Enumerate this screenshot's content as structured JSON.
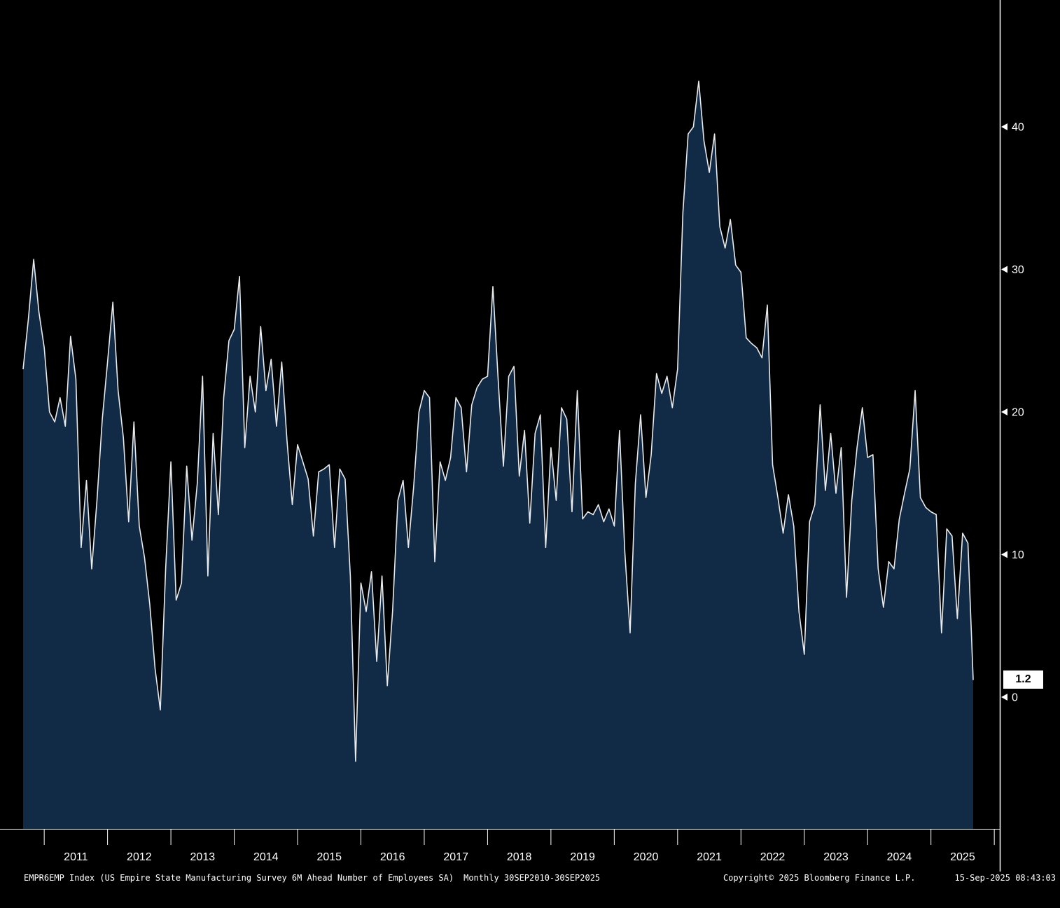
{
  "chart_data": {
    "type": "area",
    "title": "",
    "xlabel": "",
    "ylabel": "",
    "grid": false,
    "legend": "none",
    "ylim": [
      -9.2,
      47.5
    ],
    "yticks": [
      0,
      10,
      20,
      30,
      40
    ],
    "x_year_labels": [
      "2011",
      "2012",
      "2013",
      "2014",
      "2015",
      "2016",
      "2017",
      "2018",
      "2019",
      "2020",
      "2021",
      "2022",
      "2023",
      "2024",
      "2025"
    ],
    "last_value": 1.2,
    "last_value_label": "1.2",
    "series": [
      {
        "name": "EMPR6EMP Index",
        "description": "US Empire State Manufacturing Survey 6M Ahead Number of Employees SA",
        "frequency": "monthly",
        "start": "2010-09",
        "end": "2025-09",
        "values": [
          23.0,
          26.5,
          30.7,
          27.0,
          24.5,
          20.0,
          19.3,
          21.0,
          19.0,
          25.3,
          22.3,
          10.5,
          15.2,
          9.0,
          13.8,
          19.5,
          23.5,
          27.7,
          21.5,
          18.2,
          12.3,
          19.3,
          12.0,
          9.8,
          6.5,
          2.0,
          -0.9,
          9.0,
          16.5,
          6.8,
          8.0,
          16.2,
          11.0,
          15.0,
          22.5,
          8.5,
          18.5,
          12.8,
          21.0,
          25.0,
          25.8,
          29.5,
          17.5,
          22.5,
          20.0,
          26.0,
          21.5,
          23.7,
          19.0,
          23.5,
          18.0,
          13.5,
          17.7,
          16.5,
          15.3,
          11.3,
          15.8,
          16.0,
          16.3,
          10.5,
          16.0,
          15.3,
          8.5,
          -4.5,
          8.0,
          6.0,
          8.8,
          2.5,
          8.5,
          0.8,
          6.0,
          13.8,
          15.2,
          10.5,
          14.8,
          20.0,
          21.5,
          21.0,
          9.5,
          16.5,
          15.2,
          16.8,
          21.0,
          20.3,
          15.8,
          20.5,
          21.7,
          22.3,
          22.5,
          28.8,
          22.3,
          16.2,
          22.5,
          23.2,
          15.5,
          18.7,
          12.2,
          18.5,
          19.8,
          10.5,
          17.5,
          13.8,
          20.3,
          19.5,
          13.0,
          21.5,
          12.5,
          13.0,
          12.8,
          13.5,
          12.3,
          13.2,
          12.0,
          18.7,
          10.2,
          4.5,
          15.0,
          19.8,
          14.0,
          17.0,
          22.7,
          21.3,
          22.5,
          20.3,
          23.0,
          34.0,
          39.5,
          40.0,
          43.2,
          39.0,
          36.8,
          39.5,
          33.0,
          31.5,
          33.5,
          30.3,
          29.8,
          25.2,
          24.8,
          24.5,
          23.8,
          27.5,
          16.3,
          14.0,
          11.5,
          14.2,
          12.0,
          6.0,
          3.0,
          12.3,
          13.5,
          20.5,
          14.5,
          18.5,
          14.3,
          17.5,
          7.0,
          13.8,
          17.5,
          20.3,
          16.8,
          17.0,
          9.0,
          6.3,
          9.5,
          9.0,
          12.5,
          14.3,
          16.0,
          21.5,
          14.0,
          13.3,
          13.0,
          12.8,
          4.5,
          11.8,
          11.3,
          5.5,
          11.5,
          10.8,
          1.2
        ]
      }
    ],
    "colors": {
      "background": "#000000",
      "area_fill": "#112b47",
      "line": "#e8eaec",
      "axis": "#ffffff",
      "tick_label": "#ffffff",
      "badge_bg": "#ffffff",
      "badge_text": "#000000"
    }
  },
  "footer": {
    "left": "EMPR6EMP Index (US Empire State Manufacturing Survey 6M Ahead Number of Employees SA)",
    "range": "Monthly 30SEP2010-30SEP2025",
    "copyright": "Copyright© 2025 Bloomberg Finance L.P.",
    "timestamp": "15-Sep-2025 08:43:03"
  }
}
